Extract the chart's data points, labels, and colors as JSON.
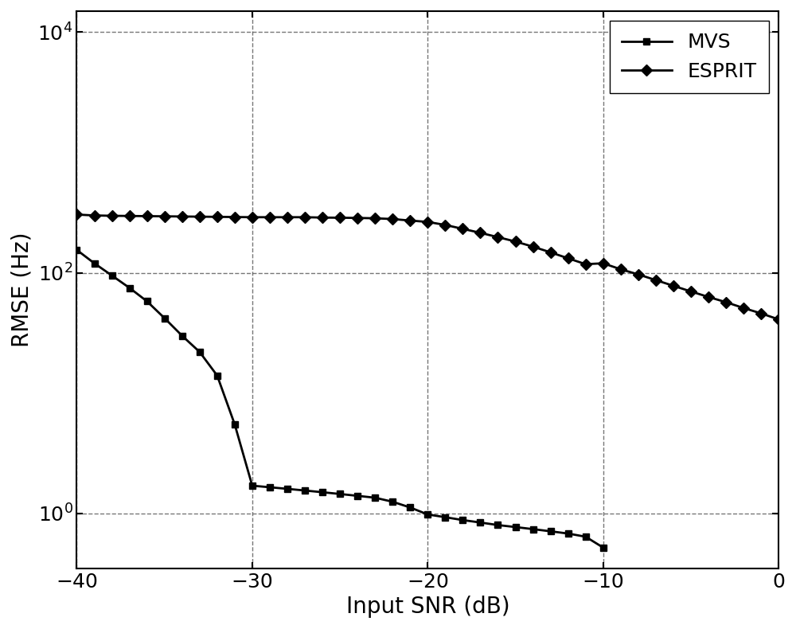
{
  "title": "",
  "xlabel": "Input SNR (dB)",
  "ylabel": "RMSE (Hz)",
  "snr_mvs": [
    -40,
    -39,
    -38,
    -37,
    -36,
    -35,
    -34,
    -33,
    -32,
    -31,
    -30,
    -29,
    -28,
    -27,
    -26,
    -25,
    -24,
    -23,
    -22,
    -21,
    -20,
    -19,
    -18,
    -17,
    -16,
    -15,
    -14,
    -13,
    -12,
    -11,
    -10
  ],
  "mvs_values": [
    155,
    120,
    95,
    75,
    58,
    42,
    30,
    22,
    14,
    5.5,
    1.7,
    1.65,
    1.6,
    1.55,
    1.5,
    1.45,
    1.4,
    1.35,
    1.25,
    1.12,
    0.98,
    0.93,
    0.88,
    0.84,
    0.8,
    0.77,
    0.74,
    0.71,
    0.68,
    0.64,
    0.52
  ],
  "snr_esprit": [
    -40,
    -39,
    -38,
    -37,
    -36,
    -35,
    -34,
    -33,
    -32,
    -31,
    -30,
    -29,
    -28,
    -27,
    -26,
    -25,
    -24,
    -23,
    -22,
    -21,
    -20,
    -19,
    -18,
    -17,
    -16,
    -15,
    -14,
    -13,
    -12,
    -11,
    -10,
    -9,
    -8,
    -7,
    -6,
    -5,
    -4,
    -3,
    -2,
    -1,
    0
  ],
  "esprit_values": [
    305,
    300,
    298,
    297,
    296,
    295,
    294,
    293,
    292,
    291,
    290,
    290,
    290,
    290,
    288,
    287,
    286,
    284,
    280,
    272,
    265,
    250,
    232,
    215,
    198,
    182,
    165,
    148,
    132,
    118,
    120,
    107,
    97,
    87,
    78,
    70,
    63,
    57,
    51,
    46,
    41
  ],
  "xlim": [
    -40,
    0
  ],
  "ylim_log": [
    0.35,
    15000
  ],
  "xticks": [
    -40,
    -30,
    -20,
    -10,
    0
  ],
  "yticks": [
    1.0,
    100.0,
    10000.0
  ],
  "line_color": "#000000",
  "background_color": "#ffffff",
  "grid_color": "#555555",
  "xlabel_fontsize": 20,
  "ylabel_fontsize": 20,
  "tick_fontsize": 18,
  "legend_fontsize": 18
}
